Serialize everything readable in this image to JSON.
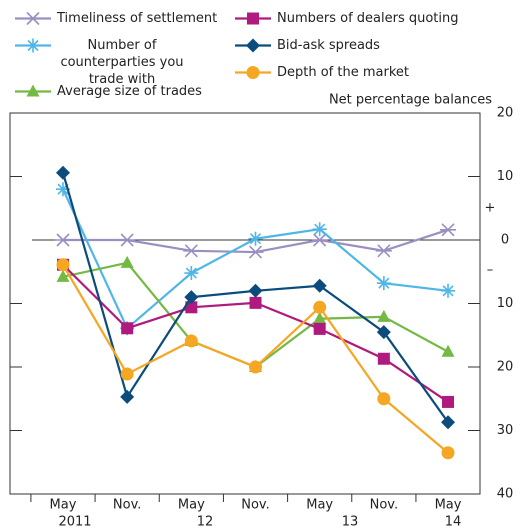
{
  "chart_data": {
    "type": "line",
    "y_label": "Net percentage balances",
    "signs": [
      "+",
      "–"
    ],
    "categories": [
      "May",
      "Nov.",
      "May",
      "Nov.",
      "May",
      "Nov.",
      "May"
    ],
    "years": [
      "2011",
      "12",
      "13",
      "14"
    ],
    "ylim": [
      -40,
      20
    ],
    "yticks": [
      {
        "value": -40,
        "label": "40"
      },
      {
        "value": -30,
        "label": "30"
      },
      {
        "value": -20,
        "label": "20"
      },
      {
        "value": -10,
        "label": "10"
      },
      0,
      10,
      20
    ],
    "series": [
      {
        "name": "Timeliness of settlement",
        "color": "#9b8fc2",
        "marker": "cross",
        "values": [
          0,
          0,
          -1.7,
          -1.9,
          0,
          -1.7,
          1.6
        ]
      },
      {
        "name": "Number of counterparties you trade with",
        "color": "#4fb6e7",
        "marker": "star",
        "values": [
          8,
          -13.9,
          -5.2,
          0.2,
          1.7,
          -6.8,
          -8.0
        ]
      },
      {
        "name": "Average size of trades",
        "color": "#74b944",
        "marker": "triangle",
        "values": [
          -5.8,
          -3.6,
          -15.9,
          -20,
          -12.4,
          -12.1,
          -17.6
        ]
      },
      {
        "name": "Numbers of dealers quoting",
        "color": "#b0197d",
        "marker": "square",
        "values": [
          -3.9,
          -13.9,
          -10.6,
          -9.9,
          -14,
          -18.7,
          -25.5
        ]
      },
      {
        "name": "Bid-ask spreads",
        "color": "#0b4c7c",
        "marker": "diamond",
        "values": [
          10.6,
          -24.7,
          -9,
          -8,
          -7.2,
          -14.5,
          -28.7
        ]
      },
      {
        "name": "Depth of the market",
        "color": "#f5a623",
        "marker": "circle",
        "values": [
          -3.9,
          -21.1,
          -15.9,
          -20,
          -10.6,
          -25,
          -33.5
        ]
      }
    ]
  }
}
